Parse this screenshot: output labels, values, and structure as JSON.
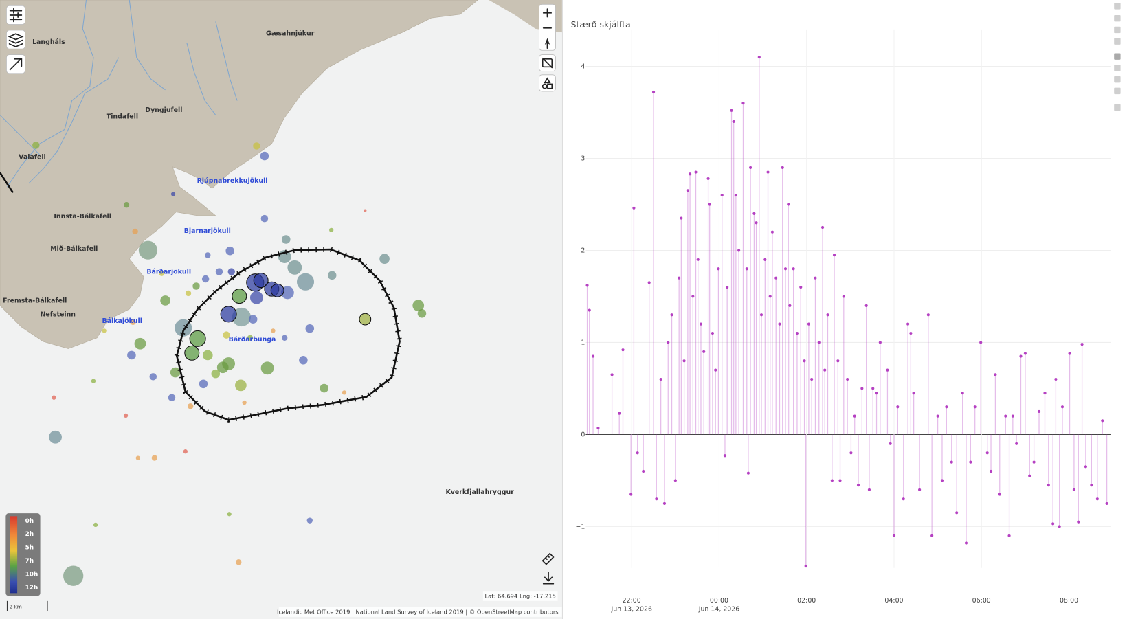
{
  "map": {
    "place_labels": [
      "Langháls",
      "Gæsahnjúkur",
      "Tindafell",
      "Dyngjufell",
      "Valafell",
      "Innsta-Bálkafell",
      "Mið-Bálkafell",
      "Fremsta-Bálkafell",
      "Nefsteinn",
      "Kverkfjallahryggur"
    ],
    "glacier_labels": [
      "Rjúpnabrekkujökull",
      "Bjarnarjökull",
      "Bárðarjökull",
      "Bálkajökull",
      "Bárðarbunga"
    ],
    "legend": {
      "labels": [
        "0h",
        "2h",
        "5h",
        "7h",
        "10h",
        "12h"
      ]
    },
    "scale": "2 km",
    "coordinates": "Lat: 64.694 Lng: -17.215",
    "attribution": "Icelandic Met Office 2019 | National Land Survey of Iceland 2019 | © OpenStreetMap contributors"
  },
  "chart": {
    "type": "stem",
    "title": "Stærð skjálfta",
    "xlim": [
      "2026-06-13 20:57",
      "2026-06-14 08:57"
    ],
    "xticks": [
      {
        "value": "2026-06-13 22:00",
        "label": "22:00",
        "date": "Jun 13, 2026"
      },
      {
        "value": "2026-06-14 00:00",
        "label": "00:00",
        "date": "Jun 14, 2026"
      },
      {
        "value": "2026-06-14 02:00",
        "label": "02:00"
      },
      {
        "value": "2026-06-14 04:00",
        "label": "04:00"
      },
      {
        "value": "2026-06-14 06:00",
        "label": "06:00"
      },
      {
        "value": "2026-06-14 08:00",
        "label": "08:00"
      }
    ],
    "ylim": [
      -1.45,
      4.4
    ],
    "yticks": [
      {
        "value": -1,
        "label": "−1"
      },
      0,
      1,
      2,
      3,
      4
    ],
    "grid": true,
    "series": [
      {
        "color": "#b541c2",
        "x": [
          "2026-06-13 20:59",
          "2026-06-13 21:02",
          "2026-06-13 21:07",
          "2026-06-13 21:14",
          "2026-06-13 21:33",
          "2026-06-13 21:43",
          "2026-06-13 21:48",
          "2026-06-13 21:59",
          "2026-06-13 22:03",
          "2026-06-13 22:08",
          "2026-06-13 22:16",
          "2026-06-13 22:24",
          "2026-06-13 22:30",
          "2026-06-13 22:34",
          "2026-06-13 22:40",
          "2026-06-13 22:45",
          "2026-06-13 22:50",
          "2026-06-13 22:55",
          "2026-06-13 23:00",
          "2026-06-13 23:05",
          "2026-06-13 23:08",
          "2026-06-13 23:12",
          "2026-06-13 23:17",
          "2026-06-13 23:20",
          "2026-06-13 23:24",
          "2026-06-13 23:28",
          "2026-06-13 23:31",
          "2026-06-13 23:35",
          "2026-06-13 23:39",
          "2026-06-13 23:45",
          "2026-06-13 23:47",
          "2026-06-13 23:51",
          "2026-06-13 23:55",
          "2026-06-13 23:59",
          "2026-06-14 00:04",
          "2026-06-14 00:08",
          "2026-06-14 00:11",
          "2026-06-14 00:17",
          "2026-06-14 00:20",
          "2026-06-14 00:23",
          "2026-06-14 00:27",
          "2026-06-14 00:33",
          "2026-06-14 00:38",
          "2026-06-14 00:40",
          "2026-06-14 00:43",
          "2026-06-14 00:48",
          "2026-06-14 00:51",
          "2026-06-14 00:55",
          "2026-06-14 00:58",
          "2026-06-14 01:03",
          "2026-06-14 01:07",
          "2026-06-14 01:10",
          "2026-06-14 01:13",
          "2026-06-14 01:18",
          "2026-06-14 01:23",
          "2026-06-14 01:27",
          "2026-06-14 01:31",
          "2026-06-14 01:35",
          "2026-06-14 01:37",
          "2026-06-14 01:42",
          "2026-06-14 01:47",
          "2026-06-14 01:52",
          "2026-06-14 01:57",
          "2026-06-14 01:59",
          "2026-06-14 02:03",
          "2026-06-14 02:07",
          "2026-06-14 02:12",
          "2026-06-14 02:17",
          "2026-06-14 02:22",
          "2026-06-14 02:25",
          "2026-06-14 02:29",
          "2026-06-14 02:35",
          "2026-06-14 02:38",
          "2026-06-14 02:43",
          "2026-06-14 02:46",
          "2026-06-14 02:51",
          "2026-06-14 02:56",
          "2026-06-14 03:01",
          "2026-06-14 03:06",
          "2026-06-14 03:11",
          "2026-06-14 03:16",
          "2026-06-14 03:22",
          "2026-06-14 03:26",
          "2026-06-14 03:31",
          "2026-06-14 03:36",
          "2026-06-14 03:41",
          "2026-06-14 03:51",
          "2026-06-14 03:55",
          "2026-06-14 04:00",
          "2026-06-14 04:05",
          "2026-06-14 04:13",
          "2026-06-14 04:19",
          "2026-06-14 04:23",
          "2026-06-14 04:27",
          "2026-06-14 04:35",
          "2026-06-14 04:47",
          "2026-06-14 04:52",
          "2026-06-14 05:00",
          "2026-06-14 05:06",
          "2026-06-14 05:12",
          "2026-06-14 05:19",
          "2026-06-14 05:26",
          "2026-06-14 05:34",
          "2026-06-14 05:39",
          "2026-06-14 05:45",
          "2026-06-14 05:51",
          "2026-06-14 05:59",
          "2026-06-14 06:08",
          "2026-06-14 06:13",
          "2026-06-14 06:19",
          "2026-06-14 06:25",
          "2026-06-14 06:33",
          "2026-06-14 06:38",
          "2026-06-14 06:43",
          "2026-06-14 06:48",
          "2026-06-14 06:54",
          "2026-06-14 07:00",
          "2026-06-14 07:06",
          "2026-06-14 07:12",
          "2026-06-14 07:19",
          "2026-06-14 07:27",
          "2026-06-14 07:32",
          "2026-06-14 07:38",
          "2026-06-14 07:42",
          "2026-06-14 07:47",
          "2026-06-14 07:51",
          "2026-06-14 08:01",
          "2026-06-14 08:07",
          "2026-06-14 08:13",
          "2026-06-14 08:18",
          "2026-06-14 08:23",
          "2026-06-14 08:31",
          "2026-06-14 08:39",
          "2026-06-14 08:46",
          "2026-06-14 08:52"
        ],
        "values": [
          1.62,
          1.35,
          0.85,
          0.07,
          0.65,
          0.23,
          0.92,
          -0.65,
          2.46,
          -0.2,
          -0.4,
          1.65,
          3.72,
          -0.7,
          0.6,
          -0.75,
          1.0,
          1.3,
          -0.5,
          1.7,
          2.35,
          0.8,
          2.65,
          2.83,
          1.5,
          2.85,
          1.9,
          1.2,
          0.9,
          2.78,
          2.5,
          1.1,
          0.7,
          1.8,
          2.6,
          -0.23,
          1.6,
          3.52,
          3.4,
          2.6,
          2.0,
          3.6,
          1.8,
          -0.42,
          2.9,
          2.4,
          2.3,
          4.1,
          1.3,
          1.9,
          2.85,
          1.5,
          2.2,
          1.7,
          1.2,
          2.9,
          1.8,
          2.5,
          1.4,
          1.8,
          1.1,
          1.6,
          0.8,
          -1.43,
          1.2,
          0.6,
          1.7,
          1.0,
          2.25,
          0.7,
          1.3,
          -0.5,
          1.95,
          0.8,
          -0.5,
          1.5,
          0.6,
          -0.2,
          0.2,
          -0.55,
          0.5,
          1.4,
          -0.6,
          0.5,
          0.45,
          1.0,
          0.7,
          -0.1,
          -1.1,
          0.3,
          -0.7,
          1.2,
          1.1,
          0.45,
          -0.6,
          1.3,
          -1.1,
          0.2,
          -0.5,
          0.3,
          -0.3,
          -0.85,
          0.45,
          -1.18,
          -0.3,
          0.3,
          1.0,
          -0.2,
          -0.4,
          0.65,
          -0.65,
          0.2,
          -1.1,
          0.2,
          -0.1,
          0.85,
          0.88,
          -0.45,
          -0.3,
          0.25,
          0.45,
          -0.55,
          -0.97,
          0.6,
          -1.0,
          0.3,
          0.88,
          -0.6,
          -0.95,
          0.98,
          -0.35,
          -0.55,
          -0.7,
          0.15,
          -0.75
        ]
      }
    ]
  }
}
